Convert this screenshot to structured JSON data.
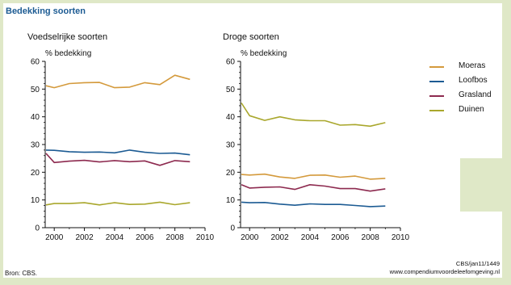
{
  "title": "Bedekking soorten",
  "source": "Bron: CBS.",
  "credit_line1": "CBS/jan11/1449",
  "credit_line2": "www.compendiumvoordeleefomgeving.nl",
  "colors": {
    "Moeras": "#d49a3c",
    "Loofbos": "#1c5b93",
    "Grasland": "#8d2a4f",
    "Duinen": "#a9a72c"
  },
  "chart_data": [
    {
      "type": "line",
      "title": "Voedselrijke soorten",
      "ylabel": "% bedekking",
      "xlim": [
        1999.4,
        2010
      ],
      "ylim": [
        0,
        60
      ],
      "x_ticks": [
        2000,
        2002,
        2004,
        2006,
        2008,
        2010
      ],
      "y_ticks": [
        0,
        10,
        20,
        30,
        40,
        50,
        60
      ],
      "x": [
        1999,
        2000,
        2001,
        2002,
        2003,
        2004,
        2005,
        2006,
        2007,
        2008,
        2009
      ],
      "series": [
        {
          "name": "Moeras",
          "values": [
            51.2,
            50.5,
            52.0,
            52.3,
            52.4,
            50.5,
            50.7,
            52.3,
            51.6,
            55.0,
            53.5
          ]
        },
        {
          "name": "Loofbos",
          "values": [
            28.0,
            27.9,
            27.4,
            27.2,
            27.3,
            27.0,
            28.0,
            27.2,
            26.8,
            26.9,
            26.3
          ]
        },
        {
          "name": "Grasland",
          "values": [
            26.8,
            23.5,
            24.0,
            24.3,
            23.7,
            24.2,
            23.8,
            24.1,
            22.5,
            24.2,
            23.8
          ]
        },
        {
          "name": "Duinen",
          "values": [
            8.2,
            8.7,
            8.7,
            9.0,
            8.2,
            9.0,
            8.4,
            8.5,
            9.2,
            8.3,
            9.0
          ]
        }
      ],
      "legend": "right"
    },
    {
      "type": "line",
      "title": "Droge soorten",
      "ylabel": "% bedekking",
      "xlim": [
        1999.4,
        2010
      ],
      "ylim": [
        0,
        60
      ],
      "x_ticks": [
        2000,
        2002,
        2004,
        2006,
        2008,
        2010
      ],
      "y_ticks": [
        0,
        10,
        20,
        30,
        40,
        50,
        60
      ],
      "x": [
        1999,
        2000,
        2001,
        2002,
        2003,
        2004,
        2005,
        2006,
        2007,
        2008,
        2009
      ],
      "series": [
        {
          "name": "Moeras",
          "values": [
            19.2,
            19.0,
            19.3,
            18.3,
            17.8,
            18.9,
            19.0,
            18.2,
            18.6,
            17.5,
            17.8
          ]
        },
        {
          "name": "Loofbos",
          "values": [
            9.2,
            9.0,
            9.1,
            8.5,
            8.1,
            8.6,
            8.4,
            8.4,
            8.0,
            7.6,
            7.8
          ]
        },
        {
          "name": "Grasland",
          "values": [
            15.5,
            14.3,
            14.6,
            14.7,
            13.8,
            15.5,
            15.0,
            14.1,
            14.1,
            13.2,
            14.0
          ]
        },
        {
          "name": "Duinen",
          "values": [
            45.0,
            40.4,
            38.7,
            40.0,
            38.9,
            38.6,
            38.6,
            37.0,
            37.2,
            36.6,
            37.9
          ]
        }
      ],
      "legend": "right"
    }
  ]
}
